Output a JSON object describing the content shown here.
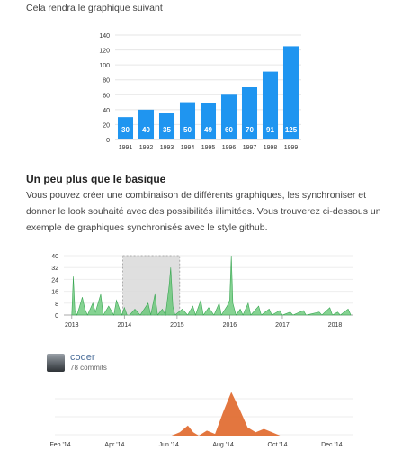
{
  "intro_text": "Cela rendra le graphique suivant",
  "section_title": "Un peu plus que le basique",
  "paragraph": "Vous pouvez créer une combinaison de différents graphiques, les synchroniser et donner le look souhaité avec des possibilités illimitées. Vous trouverez ci-dessous un exemple de graphiques synchronisés avec le style github.",
  "contributor": {
    "name": "coder",
    "commits": "78 commits"
  },
  "colors": {
    "bar": "#1f95f0",
    "area_green": "#5cc46d",
    "area_orange": "#e0672a",
    "selection": "#d9d9d9"
  },
  "chart_data": [
    {
      "type": "bar",
      "categories": [
        "1991",
        "1992",
        "1993",
        "1994",
        "1995",
        "1996",
        "1997",
        "1998",
        "1999"
      ],
      "values": [
        30,
        40,
        35,
        50,
        49,
        60,
        70,
        91,
        125
      ],
      "yticks": [
        "0",
        "20",
        "40",
        "60",
        "80",
        "100",
        "120",
        "140"
      ],
      "ylim": [
        0,
        140
      ],
      "data_labels": true
    },
    {
      "type": "area",
      "xticks": [
        "2013",
        "2014",
        "2015",
        "2016",
        "2017",
        "2018"
      ],
      "yticks": [
        "0",
        "8",
        "16",
        "24",
        "32",
        "40"
      ],
      "ylim": [
        0,
        40
      ],
      "brush_range": [
        "2014-01",
        "2014-12"
      ],
      "series": [
        {
          "values": [
            [
              2013.0,
              0
            ],
            [
              2013.03,
              26
            ],
            [
              2013.06,
              3
            ],
            [
              2013.1,
              0
            ],
            [
              2013.15,
              6
            ],
            [
              2013.2,
              12
            ],
            [
              2013.25,
              4
            ],
            [
              2013.3,
              0
            ],
            [
              2013.4,
              8
            ],
            [
              2013.45,
              2
            ],
            [
              2013.55,
              14
            ],
            [
              2013.6,
              0
            ],
            [
              2013.7,
              6
            ],
            [
              2013.8,
              0
            ],
            [
              2013.85,
              10
            ],
            [
              2013.95,
              0
            ],
            [
              2014.0,
              5
            ],
            [
              2014.05,
              0
            ],
            [
              2014.1,
              0
            ],
            [
              2014.2,
              4
            ],
            [
              2014.3,
              0
            ],
            [
              2014.45,
              8
            ],
            [
              2014.5,
              0
            ],
            [
              2014.58,
              14
            ],
            [
              2014.63,
              0
            ],
            [
              2014.72,
              4
            ],
            [
              2014.78,
              0
            ],
            [
              2014.85,
              20
            ],
            [
              2014.88,
              32
            ],
            [
              2014.92,
              6
            ],
            [
              2014.96,
              0
            ],
            [
              2015.1,
              4
            ],
            [
              2015.2,
              0
            ],
            [
              2015.3,
              6
            ],
            [
              2015.35,
              0
            ],
            [
              2015.45,
              10
            ],
            [
              2015.5,
              0
            ],
            [
              2015.6,
              5
            ],
            [
              2015.7,
              0
            ],
            [
              2015.8,
              8
            ],
            [
              2015.84,
              0
            ],
            [
              2015.95,
              6
            ],
            [
              2016.0,
              10
            ],
            [
              2016.03,
              40
            ],
            [
              2016.06,
              8
            ],
            [
              2016.12,
              0
            ],
            [
              2016.2,
              4
            ],
            [
              2016.25,
              0
            ],
            [
              2016.35,
              8
            ],
            [
              2016.4,
              0
            ],
            [
              2016.55,
              6
            ],
            [
              2016.6,
              0
            ],
            [
              2016.75,
              4
            ],
            [
              2016.8,
              0
            ],
            [
              2016.95,
              3
            ],
            [
              2017.0,
              0
            ],
            [
              2017.15,
              2
            ],
            [
              2017.2,
              0
            ],
            [
              2017.4,
              3
            ],
            [
              2017.45,
              0
            ],
            [
              2017.7,
              2
            ],
            [
              2017.75,
              0
            ],
            [
              2017.9,
              5
            ],
            [
              2017.95,
              0
            ],
            [
              2018.05,
              2
            ],
            [
              2018.1,
              0
            ],
            [
              2018.25,
              4
            ],
            [
              2018.3,
              0
            ]
          ]
        }
      ]
    },
    {
      "type": "area",
      "xticks": [
        "Feb '14",
        "Apr '14",
        "Jun '14",
        "Aug '14",
        "Oct '14",
        "Dec '14"
      ],
      "series": [
        {
          "name": "coder",
          "values": [
            [
              0,
              0
            ],
            [
              4.3,
              0
            ],
            [
              4.6,
              2
            ],
            [
              4.9,
              6
            ],
            [
              5.1,
              2
            ],
            [
              5.3,
              0
            ],
            [
              5.6,
              3
            ],
            [
              5.9,
              1
            ],
            [
              6.2,
              14
            ],
            [
              6.5,
              26
            ],
            [
              6.8,
              16
            ],
            [
              7.1,
              5
            ],
            [
              7.4,
              2
            ],
            [
              7.7,
              4
            ],
            [
              8.0,
              2
            ],
            [
              8.3,
              0
            ],
            [
              11,
              0
            ]
          ]
        }
      ]
    }
  ]
}
